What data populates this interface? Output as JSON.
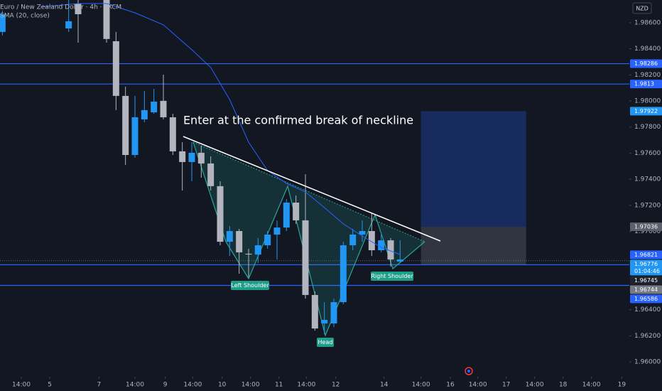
{
  "chart_data": {
    "type": "candlestick",
    "title": "Euro / New Zealand Dollar · 4h · FXCM",
    "currency": "NZD",
    "annotation": "Enter at the confirmed break of neckline",
    "pattern_labels": [
      "Left Shoulder",
      "Head",
      "Right Shoulder"
    ],
    "up_color": "#2196f3",
    "down_color": "#b2b5be",
    "grid": false,
    "xlim": [
      -0.25,
      66.2
    ],
    "ylim": [
      1.95886,
      1.98774
    ],
    "xticks": [
      {
        "value": 2.0,
        "label": "14:00"
      },
      {
        "value": 5.0,
        "label": "5"
      },
      {
        "value": 10.2,
        "label": "7"
      },
      {
        "value": 14.0,
        "label": "14:00"
      },
      {
        "value": 17.2,
        "label": "9"
      },
      {
        "value": 20.1,
        "label": "14:00"
      },
      {
        "value": 23.2,
        "label": "10"
      },
      {
        "value": 26.2,
        "label": "14:00"
      },
      {
        "value": 29.2,
        "label": "11"
      },
      {
        "value": 32.1,
        "label": "14:00"
      },
      {
        "value": 35.2,
        "label": "12"
      },
      {
        "value": 40.3,
        "label": "14"
      },
      {
        "value": 44.2,
        "label": "14:00"
      },
      {
        "value": 47.3,
        "label": "16"
      },
      {
        "value": 50.2,
        "label": "14:00"
      },
      {
        "value": 53.2,
        "label": "17"
      },
      {
        "value": 56.2,
        "label": "14:00"
      },
      {
        "value": 59.2,
        "label": "18"
      },
      {
        "value": 62.2,
        "label": "14:00"
      },
      {
        "value": 65.4,
        "label": "19"
      }
    ],
    "yticks": [
      {
        "value": 1.986,
        "label": "1.98600"
      },
      {
        "value": 1.984,
        "label": "1.98400"
      },
      {
        "value": 1.982,
        "label": "1.98200"
      },
      {
        "value": 1.98,
        "label": "1.98000"
      },
      {
        "value": 1.978,
        "label": "1.97800"
      },
      {
        "value": 1.976,
        "label": "1.97600"
      },
      {
        "value": 1.974,
        "label": "1.97400"
      },
      {
        "value": 1.972,
        "label": "1.97200"
      },
      {
        "value": 1.97,
        "label": "1.97000"
      },
      {
        "value": 1.964,
        "label": "1.96400"
      },
      {
        "value": 1.962,
        "label": "1.96200"
      },
      {
        "value": 1.96,
        "label": "1.96000"
      }
    ],
    "x": [
      0,
      7,
      8,
      11,
      12,
      13,
      14,
      15,
      16,
      17,
      18,
      19,
      20,
      21,
      22,
      23,
      24,
      25,
      26,
      27,
      28,
      29,
      30,
      31,
      32,
      33,
      34,
      35,
      36,
      37,
      38,
      39,
      40,
      41,
      42
    ],
    "open": [
      1.98529,
      1.98556,
      1.98747,
      1.98774,
      1.98458,
      1.98039,
      1.97586,
      1.97859,
      1.97913,
      1.98001,
      1.97875,
      1.97614,
      1.97532,
      1.97603,
      1.97521,
      1.97347,
      1.96921,
      1.97003,
      1.96829,
      1.96823,
      1.96894,
      1.96976,
      1.9703,
      1.97221,
      1.97085,
      1.96513,
      1.96295,
      1.96295,
      1.96458,
      1.96894,
      1.96976,
      1.97003,
      1.96856,
      1.96932,
      1.96769
    ],
    "high": [
      1.98693,
      1.98774,
      1.98774,
      1.98774,
      1.98529,
      1.9811,
      1.98039,
      1.98077,
      1.98093,
      1.98202,
      1.97902,
      1.97684,
      1.97684,
      1.97657,
      1.97575,
      1.97385,
      1.97041,
      1.9702,
      1.96867,
      1.96949,
      1.97003,
      1.97085,
      1.97248,
      1.97276,
      1.97439,
      1.9654,
      1.96458,
      1.96485,
      1.96921,
      1.9702,
      1.97085,
      1.97139,
      1.96976,
      1.96949,
      1.96932
    ],
    "low": [
      1.98502,
      1.98529,
      1.98447,
      1.98447,
      1.9793,
      1.9751,
      1.97565,
      1.97837,
      1.97902,
      1.97859,
      1.97586,
      1.97314,
      1.97385,
      1.97412,
      1.97314,
      1.96894,
      1.96812,
      1.96676,
      1.96649,
      1.96758,
      1.96867,
      1.96785,
      1.97003,
      1.97058,
      1.96485,
      1.9624,
      1.96213,
      1.96267,
      1.96442,
      1.96856,
      1.96921,
      1.96812,
      1.9684,
      1.96731,
      1.96758
    ],
    "close": [
      1.98665,
      1.98611,
      1.98665,
      1.98475,
      1.98039,
      1.97586,
      1.97875,
      1.9793,
      1.97995,
      1.97875,
      1.97614,
      1.97532,
      1.97603,
      1.97521,
      1.97347,
      1.96921,
      1.97003,
      1.9684,
      1.96823,
      1.96894,
      1.96976,
      1.9703,
      1.97221,
      1.97085,
      1.96513,
      1.96256,
      1.96322,
      1.96458,
      1.96894,
      1.96976,
      1.97003,
      1.96856,
      1.96932,
      1.96785,
      1.96785
    ],
    "overlays": [
      {
        "name": "SMA (20, close)",
        "color": "#2962ff",
        "x": [
          4,
          8,
          11,
          14,
          17,
          20,
          22,
          24,
          26,
          28,
          30,
          32,
          34,
          36,
          38,
          40,
          42
        ],
        "values": [
          1.9872,
          1.98747,
          1.98747,
          1.98676,
          1.98584,
          1.98393,
          1.98257,
          1.98011,
          1.97684,
          1.97466,
          1.97368,
          1.97303,
          1.97183,
          1.97058,
          1.96965,
          1.96878,
          1.96823
        ]
      }
    ],
    "position_x": [
      44.2,
      55.3
    ],
    "price_labels": [
      {
        "value": 1.98286,
        "color": "#2962ff",
        "line": "solid"
      },
      {
        "value": 1.9813,
        "color": "#2962ff",
        "line": "solid"
      },
      {
        "value": 1.97922,
        "color": "#2196f3",
        "role": "target"
      },
      {
        "value": 1.97036,
        "color": "#5d606b",
        "role": "entry"
      },
      {
        "value": 1.96821,
        "color": "#2962ff"
      },
      {
        "value": 1.96776,
        "color": "#2196f3",
        "line": "dotted",
        "countdown": "01:04:46"
      },
      {
        "value": 1.96745,
        "color": "#1e222d",
        "line": "solid"
      },
      {
        "value": 1.96744,
        "color": "#787b86",
        "role": "stop"
      },
      {
        "value": 1.96586,
        "color": "#2962ff",
        "line": "solid"
      }
    ]
  }
}
